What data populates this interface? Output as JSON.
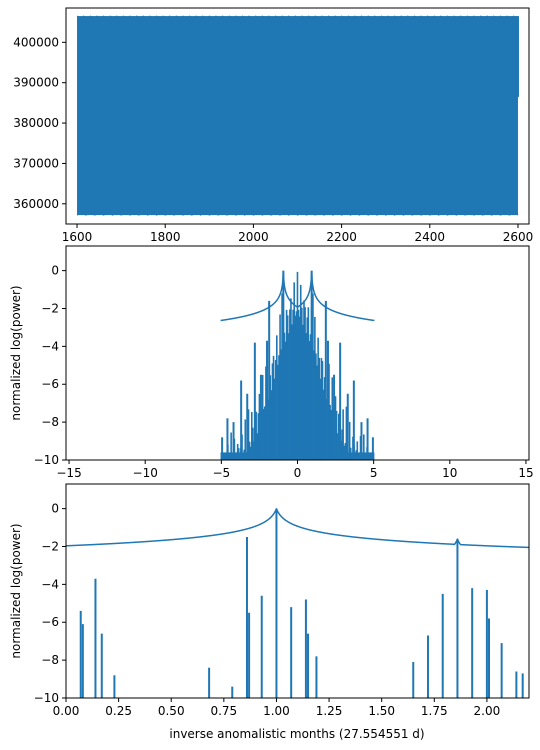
{
  "chart_data": [
    {
      "type": "area",
      "series_color": "#1f77b4",
      "xlim": [
        1575,
        2625
      ],
      "ylim": [
        355000,
        408500
      ],
      "envelope": {
        "x": [
          1600,
          2600
        ],
        "y_min": 357200,
        "y_max": 406500
      },
      "xticks": [
        1600,
        1800,
        2000,
        2200,
        2400,
        2600
      ],
      "xtick_labels": [
        "1600",
        "1800",
        "2000",
        "2200",
        "2400",
        "2600"
      ],
      "yticks": [
        360000,
        370000,
        380000,
        390000,
        400000
      ],
      "ytick_labels": [
        "360000",
        "370000",
        "380000",
        "390000",
        "400000"
      ],
      "xlabel": "",
      "ylabel": ""
    },
    {
      "type": "line",
      "series_color": "#1f77b4",
      "xlim": [
        -15.2,
        15.2
      ],
      "ylim": [
        -10,
        1.3
      ],
      "xticks": [
        -15,
        -10,
        -5,
        0,
        5,
        10,
        15
      ],
      "xtick_labels": [
        "−15",
        "−10",
        "−5",
        "0",
        "5",
        "10",
        "15"
      ],
      "yticks": [
        0,
        -2,
        -4,
        -6,
        -8,
        -10
      ],
      "ytick_labels": [
        "0",
        "−2",
        "−4",
        "−6",
        "−8",
        "−10"
      ],
      "xlabel": "",
      "ylabel": "normalized log(power)",
      "peaks": [
        {
          "x": -0.93,
          "y": 0
        },
        {
          "x": 0.93,
          "y": 0
        },
        {
          "x": -1.86,
          "y": -1.6
        },
        {
          "x": 1.86,
          "y": -1.6
        },
        {
          "x": -1.0,
          "y": -1.2
        },
        {
          "x": 1.0,
          "y": -1.2
        },
        {
          "x": -2.0,
          "y": -3.7
        },
        {
          "x": 2.0,
          "y": -3.7
        },
        {
          "x": -2.8,
          "y": -3.8
        },
        {
          "x": 2.8,
          "y": -3.8
        },
        {
          "x": -3.7,
          "y": -5.8
        },
        {
          "x": 3.7,
          "y": -5.8
        },
        {
          "x": -4.6,
          "y": -7.8
        },
        {
          "x": 4.6,
          "y": -7.8
        },
        {
          "x": -0.07,
          "y": -3.8
        },
        {
          "x": 0.07,
          "y": -3.8
        },
        {
          "x": -1.4,
          "y": -5.0
        },
        {
          "x": 1.4,
          "y": -5.0
        },
        {
          "x": -2.4,
          "y": -5.5
        },
        {
          "x": 2.4,
          "y": -5.5
        },
        {
          "x": -3.3,
          "y": -6.5
        },
        {
          "x": 3.3,
          "y": -6.5
        },
        {
          "x": -4.2,
          "y": -8.0
        },
        {
          "x": 4.2,
          "y": -8.0
        },
        {
          "x": -4.95,
          "y": -8.8
        },
        {
          "x": 4.95,
          "y": -8.8
        }
      ]
    },
    {
      "type": "line",
      "series_color": "#1f77b4",
      "xlim": [
        0.0,
        2.2
      ],
      "ylim": [
        -10,
        1.3
      ],
      "xticks": [
        0.0,
        0.25,
        0.5,
        0.75,
        1.0,
        1.25,
        1.5,
        1.75,
        2.0
      ],
      "xtick_labels": [
        "0.00",
        "0.25",
        "0.50",
        "0.75",
        "1.00",
        "1.25",
        "1.50",
        "1.75",
        "2.00"
      ],
      "yticks": [
        0,
        -2,
        -4,
        -6,
        -8,
        -10
      ],
      "ytick_labels": [
        "0",
        "−2",
        "−4",
        "−6",
        "−8",
        "−10"
      ],
      "xlabel": "inverse anomalistic months (27.554551 d)",
      "ylabel": "normalized log(power)",
      "peaks": [
        {
          "x": 0.07,
          "y": -5.4
        },
        {
          "x": 0.08,
          "y": -6.1
        },
        {
          "x": 0.14,
          "y": -3.7
        },
        {
          "x": 0.17,
          "y": -6.6
        },
        {
          "x": 0.23,
          "y": -8.8
        },
        {
          "x": 0.68,
          "y": -8.4
        },
        {
          "x": 0.79,
          "y": -9.4
        },
        {
          "x": 0.86,
          "y": -1.5
        },
        {
          "x": 0.87,
          "y": -5.5
        },
        {
          "x": 0.93,
          "y": -4.6
        },
        {
          "x": 1.0,
          "y": 0
        },
        {
          "x": 1.07,
          "y": -5.2
        },
        {
          "x": 1.14,
          "y": -4.8
        },
        {
          "x": 1.15,
          "y": -6.6
        },
        {
          "x": 1.19,
          "y": -7.8
        },
        {
          "x": 1.65,
          "y": -8.1
        },
        {
          "x": 1.72,
          "y": -6.7
        },
        {
          "x": 1.79,
          "y": -4.5
        },
        {
          "x": 1.86,
          "y": -1.6
        },
        {
          "x": 1.93,
          "y": -4.2
        },
        {
          "x": 2.0,
          "y": -4.3
        },
        {
          "x": 2.01,
          "y": -5.8
        },
        {
          "x": 2.07,
          "y": -7.1
        },
        {
          "x": 2.14,
          "y": -8.6
        },
        {
          "x": 2.17,
          "y": -8.7
        }
      ]
    }
  ]
}
